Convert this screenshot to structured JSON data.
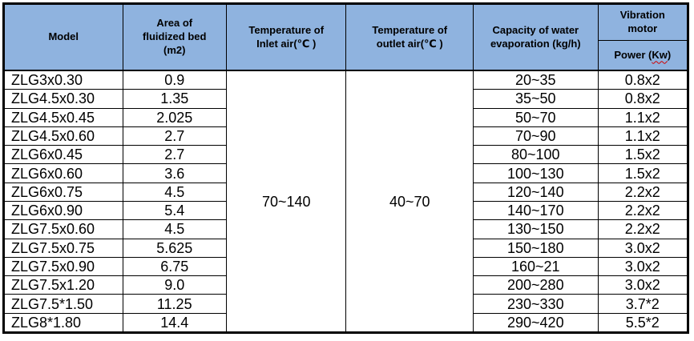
{
  "table": {
    "headers": {
      "model": "Model",
      "area": "Area of\nfluidized bed\n(m2)",
      "temp_inlet": "Temperature of\nInlet air(℃ )",
      "temp_outlet": "Temperature of\noutlet air(℃ )",
      "capacity": "Capacity of water\nevaporation (kg/h)",
      "vibration_motor": "Vibration\nmotor",
      "power_prefix": "Power (",
      "power_kw": "Kw",
      "power_suffix": ")"
    },
    "merged": {
      "temp_inlet_value": "70~140",
      "temp_outlet_value": "40~70"
    },
    "rows": [
      {
        "model": "ZLG3x0.30",
        "area": "0.9",
        "capacity": "20~35",
        "power": "0.8x2"
      },
      {
        "model": "ZLG4.5x0.30",
        "area": "1.35",
        "capacity": "35~50",
        "power": "0.8x2"
      },
      {
        "model": "ZLG4.5x0.45",
        "area": "2.025",
        "capacity": "50~70",
        "power": "1.1x2"
      },
      {
        "model": "ZLG4.5x0.60",
        "area": "2.7",
        "capacity": "70~90",
        "power": "1.1x2"
      },
      {
        "model": "ZLG6x0.45",
        "area": "2.7",
        "capacity": "80~100",
        "power": "1.5x2"
      },
      {
        "model": "ZLG6x0.60",
        "area": "3.6",
        "capacity": "100~130",
        "power": "1.5x2"
      },
      {
        "model": "ZLG6x0.75",
        "area": "4.5",
        "capacity": "120~140",
        "power": "2.2x2"
      },
      {
        "model": "ZLG6x0.90",
        "area": "5.4",
        "capacity": "140~170",
        "power": "2.2x2"
      },
      {
        "model": "ZLG7.5x0.60",
        "area": "4.5",
        "capacity": "130~150",
        "power": "2.2x2"
      },
      {
        "model": "ZLG7.5x0.75",
        "area": "5.625",
        "capacity": "150~180",
        "power": "3.0x2"
      },
      {
        "model": "ZLG7.5x0.90",
        "area": "6.75",
        "capacity": "160~21",
        "power": "3.0x2"
      },
      {
        "model": "ZLG7.5x1.20",
        "area": "9.0",
        "capacity": "200~280",
        "power": "3.0x2"
      },
      {
        "model": "ZLG7.5*1.50",
        "area": "11.25",
        "capacity": "230~330",
        "power": "3.7*2"
      },
      {
        "model": "ZLG8*1.80",
        "area": "14.4",
        "capacity": "290~420",
        "power": "5.5*2"
      }
    ],
    "colors": {
      "header_bg": "#8FB3DF",
      "border": "#000000",
      "squiggle": "#d00000"
    }
  }
}
